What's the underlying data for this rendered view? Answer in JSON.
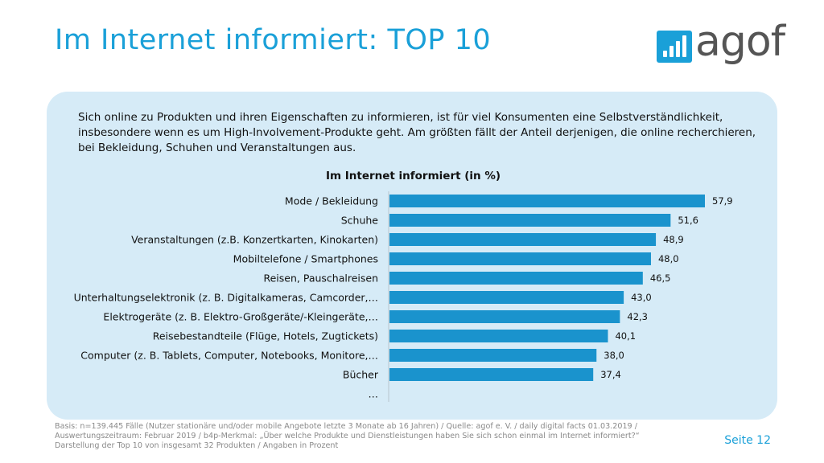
{
  "slide": {
    "title": "Im Internet informiert: TOP 10",
    "intro": "Sich online zu Produkten und ihren Eigenschaften zu informieren, ist für viel Konsumenten eine Selbstverständlichkeit, insbesondere wenn es um High-Involvement-Produkte geht. Am größten fällt der Anteil derjenigen, die online recherchieren, bei Bekleidung, Schuhen und Veranstaltungen aus.",
    "logo_text": "agof",
    "footnote_lines": [
      "Basis: n=139.445 Fälle (Nutzer stationäre und/oder mobile Angebote letzte 3 Monate ab 16 Jahren) / Quelle: agof e. V. / daily digital facts 01.03.2019 /",
      "Auswertungszeitraum: Februar 2019 / b4p-Merkmal: „Über welche Produkte und Dienstleistungen haben Sie sich schon einmal im Internet informiert?“",
      "Darstellung der Top 10 von insgesamt 32 Produkten / Angaben in Prozent"
    ],
    "page_label": "Seite 12"
  },
  "colors": {
    "accent": "#1aa0d8",
    "bar": "#1a93cd",
    "panel": "#d6ebf7"
  },
  "chart_data": {
    "type": "bar",
    "orientation": "horizontal",
    "title": "Im Internet informiert (in %)",
    "categories": [
      "Mode / Bekleidung",
      "Schuhe",
      "Veranstaltungen (z.B. Konzertkarten, Kinokarten)",
      "Mobiltelefone / Smartphones",
      "Reisen, Pauschalreisen",
      "Unterhaltungselektronik (z. B. Digitalkameras, Camcorder,…",
      "Elektrogeräte (z. B. Elektro-Großgeräte/-Kleingeräte,…",
      "Reisebestandteile (Flüge, Hotels, Zugtickets)",
      "Computer (z. B. Tablets, Computer, Notebooks, Monitore,…",
      "Bücher",
      "…"
    ],
    "values": [
      57.9,
      51.6,
      48.9,
      48.0,
      46.5,
      43.0,
      42.3,
      40.1,
      38.0,
      37.4,
      null
    ],
    "value_labels": [
      "57,9",
      "51,6",
      "48,9",
      "48,0",
      "46,5",
      "43,0",
      "42,3",
      "40,1",
      "38,0",
      "37,4",
      ""
    ],
    "xlim": [
      0,
      60
    ],
    "grid": false,
    "legend": "none"
  }
}
